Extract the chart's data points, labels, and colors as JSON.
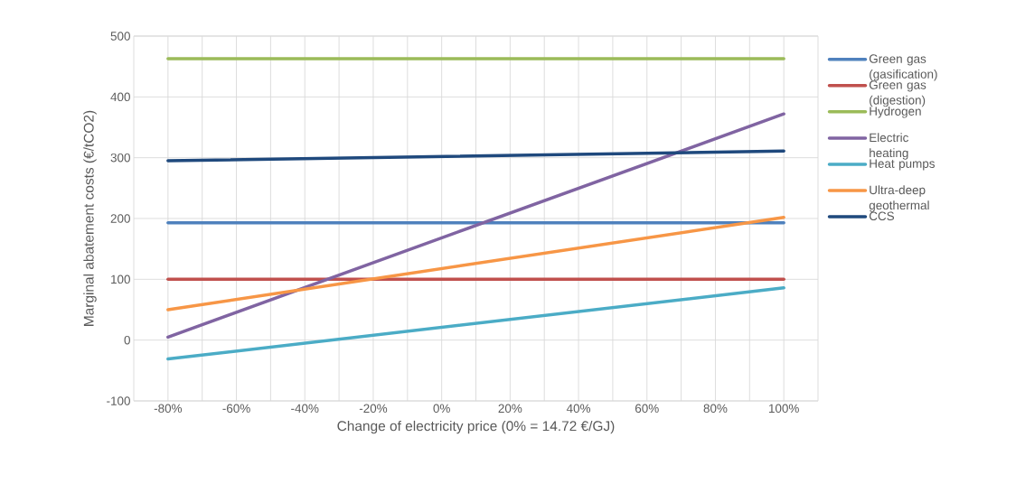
{
  "chart_data": {
    "type": "line",
    "xlabel": "Change of electricity price (0% = 14.72 €/GJ)",
    "ylabel": "Marginal abatement costs (€/tCO2)",
    "x": [
      -80,
      100
    ],
    "xlim": [
      -90,
      110
    ],
    "xticks": [
      {
        "value": -80,
        "label": "-80%"
      },
      {
        "value": -70,
        "label": null
      },
      {
        "value": -60,
        "label": "-60%"
      },
      {
        "value": -50,
        "label": null
      },
      {
        "value": -40,
        "label": "-40%"
      },
      {
        "value": -30,
        "label": null
      },
      {
        "value": -20,
        "label": "-20%"
      },
      {
        "value": -10,
        "label": null
      },
      {
        "value": 0,
        "label": "0%"
      },
      {
        "value": 10,
        "label": null
      },
      {
        "value": 20,
        "label": "20%"
      },
      {
        "value": 30,
        "label": null
      },
      {
        "value": 40,
        "label": "40%"
      },
      {
        "value": 50,
        "label": null
      },
      {
        "value": 60,
        "label": "60%"
      },
      {
        "value": 70,
        "label": null
      },
      {
        "value": 80,
        "label": "80%"
      },
      {
        "value": 90,
        "label": null
      },
      {
        "value": 100,
        "label": "100%"
      }
    ],
    "ylim": [
      -100,
      500
    ],
    "yticks": [
      -100,
      0,
      100,
      200,
      300,
      400,
      500
    ],
    "grid": true,
    "legend": "right",
    "marker": "none",
    "line_style": "solid",
    "series": [
      {
        "name": "Green gas (gasification)",
        "color": "#4f81bd",
        "values": [
          193,
          193
        ]
      },
      {
        "name": "Green gas (digestion)",
        "color": "#c0504d",
        "values": [
          100,
          100
        ]
      },
      {
        "name": "Hydrogen",
        "color": "#9bbb59",
        "values": [
          463,
          463
        ]
      },
      {
        "name": "Electric heating",
        "color": "#8064a2",
        "values": [
          5,
          372
        ]
      },
      {
        "name": "Heat pumps",
        "color": "#4bacc6",
        "values": [
          -31,
          86
        ]
      },
      {
        "name": "Ultra-deep geothermal",
        "color": "#f79646",
        "values": [
          50,
          202
        ]
      },
      {
        "name": "CCS",
        "color": "#1f497d",
        "values": [
          295,
          311
        ]
      }
    ]
  }
}
